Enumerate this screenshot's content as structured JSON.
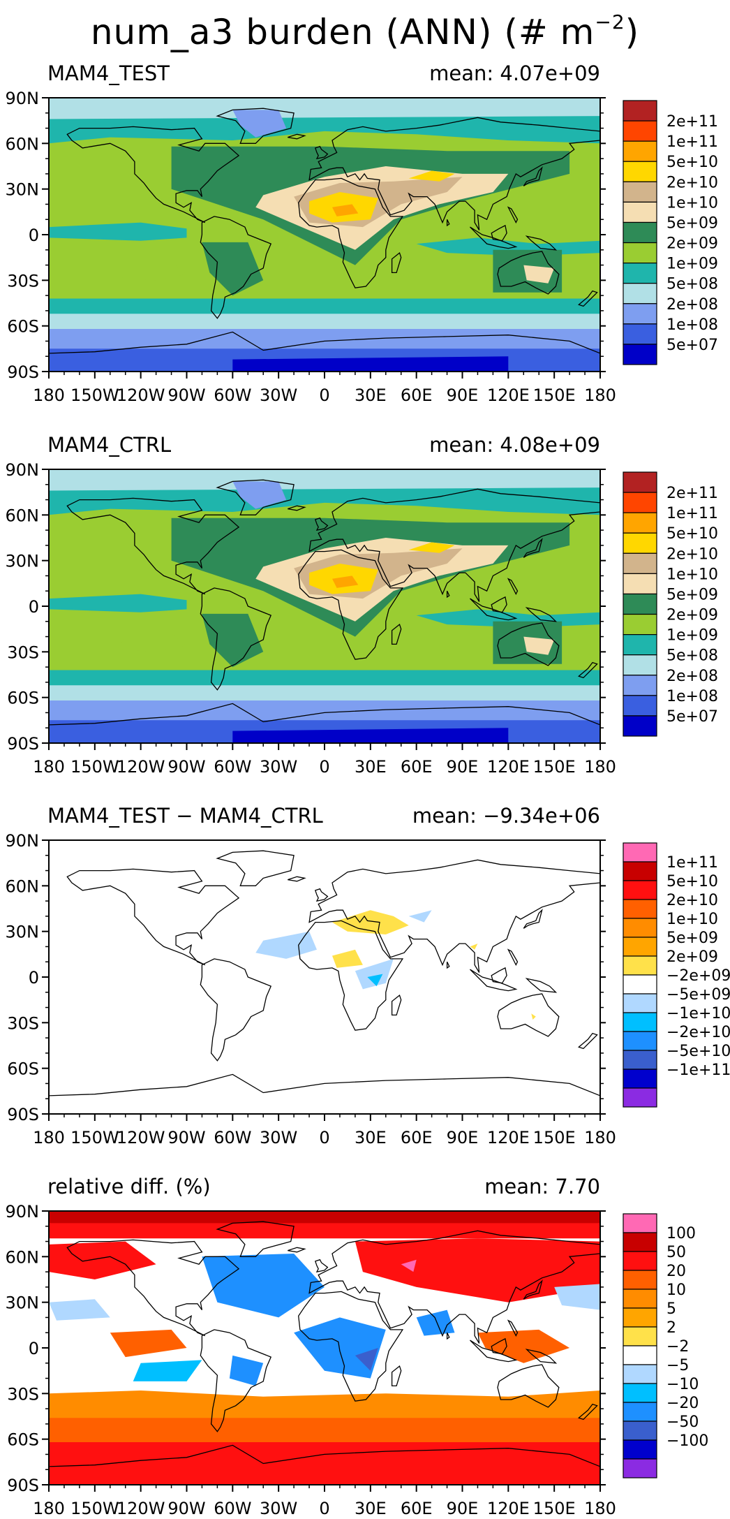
{
  "title": {
    "main": "num_a3 burden (ANN) (# m",
    "sup": "−2",
    "close": ")"
  },
  "colors": {
    "abs_fills": [
      "#0000c8",
      "#3a5fe0",
      "#7e9ef0",
      "#b1e0e6",
      "#1fb5ac",
      "#9acd32",
      "#2e8b57",
      "#f5deb3",
      "#d2b48c",
      "#ffd700",
      "#ffa500",
      "#ff4500",
      "#b22222"
    ],
    "diff_fills": [
      "#8b2be2",
      "#0000cd",
      "#3a5fcd",
      "#1e90ff",
      "#00bfff",
      "#b0d8ff",
      "#ffffff",
      "#ffe14a",
      "#ffa500",
      "#ff8c00",
      "#ff6000",
      "#ff1010",
      "#c80000",
      "#ff69b4"
    ],
    "land": "#000000",
    "frame": "#000000"
  },
  "axes": {
    "x_ticks": [
      "180",
      "150W",
      "120W",
      "90W",
      "60W",
      "30W",
      "0",
      "30E",
      "60E",
      "90E",
      "120E",
      "150E",
      "180"
    ],
    "y_ticks": [
      "90N",
      "60N",
      "30N",
      "0",
      "30S",
      "60S",
      "90S"
    ]
  },
  "panels": [
    {
      "name": "MAM4_TEST",
      "mean": "mean: 4.07e+09",
      "kind": "abs",
      "colorbar": [
        "2e+11",
        "1e+11",
        "5e+10",
        "2e+10",
        "1e+10",
        "5e+09",
        "2e+09",
        "1e+09",
        "5e+08",
        "2e+08",
        "1e+08",
        "5e+07"
      ]
    },
    {
      "name": "MAM4_CTRL",
      "mean": "mean: 4.08e+09",
      "kind": "abs",
      "colorbar": [
        "2e+11",
        "1e+11",
        "5e+10",
        "2e+10",
        "1e+10",
        "5e+09",
        "2e+09",
        "1e+09",
        "5e+08",
        "2e+08",
        "1e+08",
        "5e+07"
      ]
    },
    {
      "name": "MAM4_TEST − MAM4_CTRL",
      "mean": "mean: −9.34e+06",
      "kind": "diff",
      "colorbar": [
        "1e+11",
        "5e+10",
        "2e+10",
        "1e+10",
        "5e+09",
        "2e+09",
        "−2e+09",
        "−5e+09",
        "−1e+10",
        "−2e+10",
        "−5e+10",
        "−1e+11"
      ]
    },
    {
      "name": "relative diff. (%)",
      "mean": "mean:   7.70",
      "kind": "rel",
      "colorbar": [
        "100",
        "50",
        "20",
        "10",
        "5",
        "2",
        "−2",
        "−5",
        "−10",
        "−20",
        "−50",
        "−100"
      ]
    }
  ]
}
